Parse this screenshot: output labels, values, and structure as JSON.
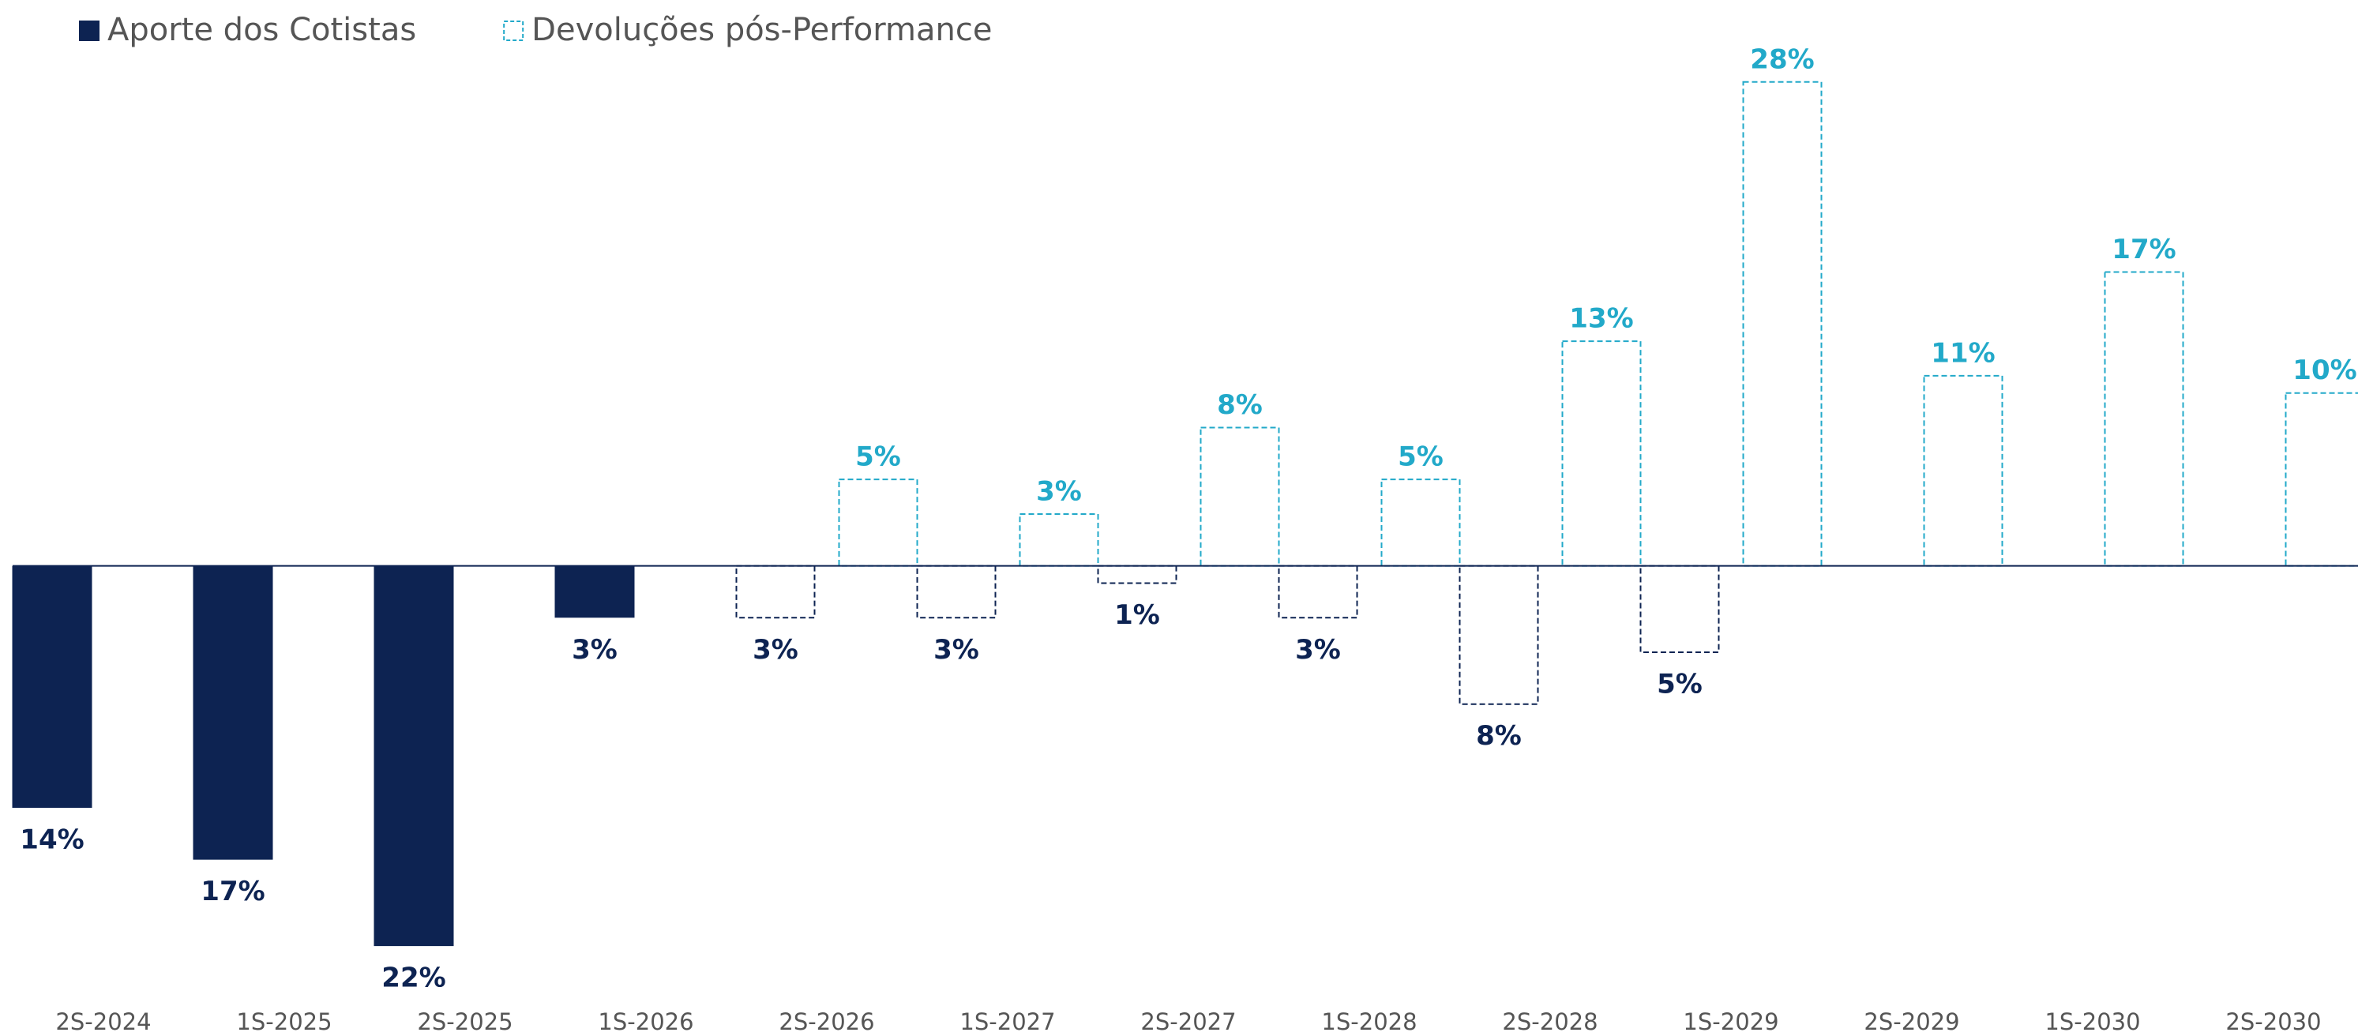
{
  "chart_data": {
    "type": "bar",
    "categories": [
      "2S-2024",
      "1S-2025",
      "2S-2025",
      "1S-2026",
      "2S-2026",
      "1S-2027",
      "2S-2027",
      "1S-2028",
      "2S-2028",
      "1S-2029",
      "2S-2029",
      "1S-2030",
      "2S-2030"
    ],
    "series": [
      {
        "name": "Aporte dos Cotistas",
        "color": "#0d2352",
        "values": [
          -14,
          -17,
          -22,
          -3,
          -3,
          -3,
          -1,
          -3,
          -8,
          -5,
          null,
          null,
          null
        ],
        "value_labels": [
          "14%",
          "17%",
          "22%",
          "3%",
          "3%",
          "3%",
          "1%",
          "3%",
          "8%",
          "5%",
          null,
          null,
          null
        ],
        "styles": [
          "solid",
          "solid",
          "solid",
          "solid",
          "dashed",
          "dashed",
          "dashed",
          "dashed",
          "dashed",
          "dashed",
          null,
          null,
          null
        ]
      },
      {
        "name": "Devoluções pós-Performance",
        "color": "#22a9c9",
        "values": [
          null,
          null,
          null,
          null,
          5,
          3,
          8,
          5,
          13,
          28,
          11,
          17,
          10
        ],
        "value_labels": [
          null,
          null,
          null,
          null,
          "5%",
          "3%",
          "8%",
          "5%",
          "13%",
          "28%",
          "11%",
          "17%",
          "10%"
        ],
        "styles": [
          null,
          null,
          null,
          null,
          "dashed",
          "dashed",
          "dashed",
          "dashed",
          "dashed",
          "dashed",
          "dashed",
          "dashed",
          "dashed"
        ]
      }
    ],
    "ylim": [
      -23,
      30
    ],
    "legend": "top-left"
  }
}
